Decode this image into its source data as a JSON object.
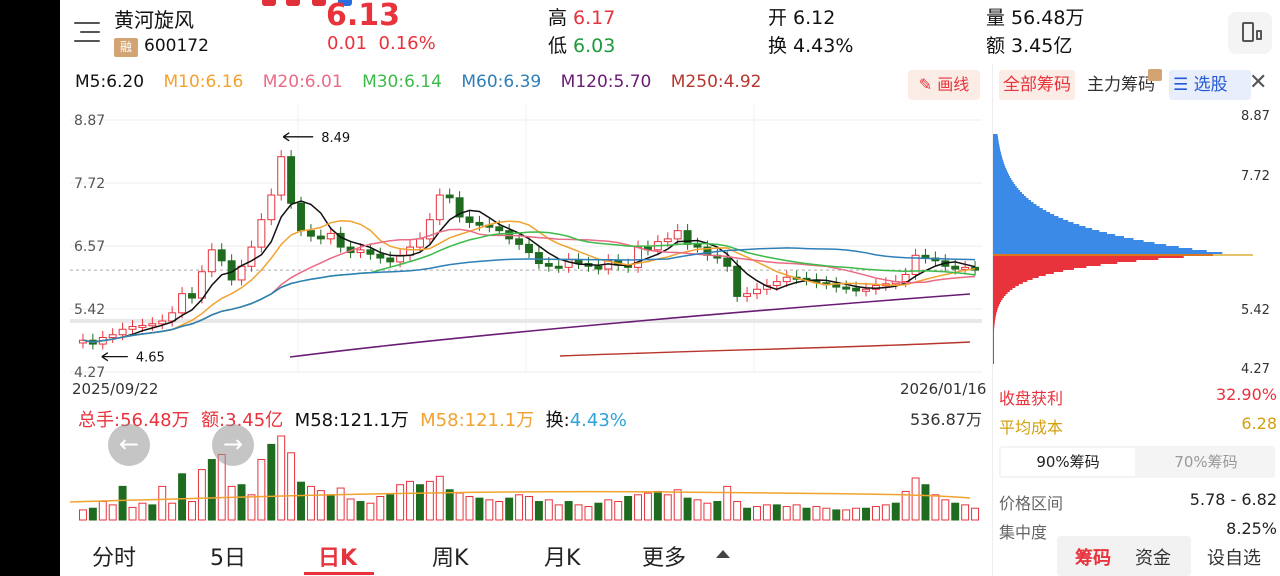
{
  "header": {
    "stock_name": "黄河旋风",
    "margin_badge": "融",
    "stock_code": "600172",
    "price": "6.13",
    "change": "0.01",
    "change_pct": "0.16%",
    "high_label": "高",
    "high": "6.17",
    "low_label": "低",
    "low": "6.03",
    "open_label": "开",
    "open": "6.12",
    "turnover_label": "换",
    "turnover": "4.43%",
    "volume_label": "量",
    "volume": "56.48万",
    "amount_label": "额",
    "amount": "3.45亿"
  },
  "ma": {
    "m5": "M5:6.20",
    "m10": "M10:6.16",
    "m20": "M20:6.01",
    "m30": "M30:6.14",
    "m60": "M60:6.39",
    "m120": "M120:5.70",
    "m250": "M250:4.92",
    "draw_label": "画线",
    "colors": {
      "m5": "#111111",
      "m10": "#f2a22f",
      "m20": "#ea6b86",
      "m30": "#3dbb4a",
      "m60": "#2f7fb8",
      "m120": "#6a1b74",
      "m250": "#b8352d"
    }
  },
  "kchart": {
    "y_ticks": [
      "8.87",
      "7.72",
      "6.57",
      "5.42",
      "4.27"
    ],
    "high_marker": "8.49",
    "low_marker": "4.65",
    "start_date": "2025/09/22",
    "end_date": "2026/01/16"
  },
  "volume": {
    "total_label": "总手:56.48万",
    "amount_label": "额:3.45亿",
    "m58a": "M58:121.1万",
    "m58b": "M58:121.1万",
    "turnover_label": "换:",
    "turnover": "4.43%",
    "max": "536.87万"
  },
  "tabs": [
    "分时",
    "5日",
    "日K",
    "周K",
    "月K",
    "更多"
  ],
  "right_panel": {
    "tabs": [
      "全部筹码",
      "主力筹码",
      "选股"
    ],
    "prices": [
      "8.87",
      "7.72",
      "5.42",
      "4.27"
    ],
    "profit_label": "收盘获利",
    "profit": "32.90%",
    "avg_label": "平均成本",
    "avg": "6.28",
    "seg1": "90%筹码",
    "seg2": "70%筹码",
    "range_label": "价格区间",
    "range": "5.78 - 6.82",
    "conc_label": "集中度",
    "conc": "8.25%",
    "bottom": [
      "筹码",
      "资金",
      "设自选"
    ]
  }
}
